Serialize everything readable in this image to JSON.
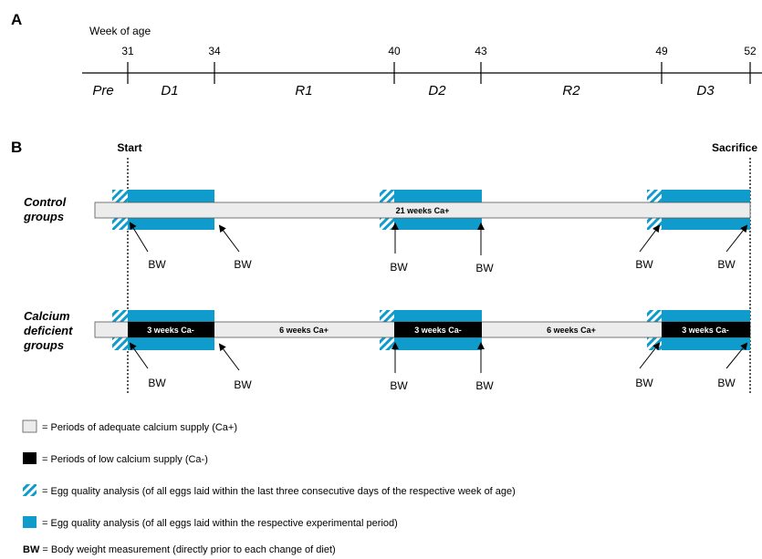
{
  "panel_a": {
    "letter": "A",
    "axis_title": "Week of age",
    "ticks": [
      "31",
      "34",
      "40",
      "43",
      "49",
      "52"
    ],
    "periods": [
      "Pre",
      "D1",
      "R1",
      "D2",
      "R2",
      "D3"
    ]
  },
  "panel_b": {
    "letter": "B",
    "start_label": "Start",
    "end_label": "Sacrifice",
    "control": {
      "label_line1": "Control",
      "label_line2": "groups",
      "bar_label": "21 weeks Ca+"
    },
    "calcium": {
      "label_line1": "Calcium",
      "label_line2": "deficient",
      "label_line3": "groups",
      "segments": [
        "3 weeks Ca-",
        "6 weeks Ca+",
        "3 weeks Ca-",
        "6 weeks Ca+",
        "3 weeks Ca-"
      ]
    },
    "bw_label": "BW"
  },
  "legend": {
    "items": [
      {
        "text": "= Periods of adequate calcium supply (Ca+)"
      },
      {
        "text": "= Periods of low calcium supply (Ca-)"
      },
      {
        "text": "= Egg quality analysis (of all eggs laid within the last three consecutive days of the respective week of age)"
      },
      {
        "text": "= Egg quality analysis (of all eggs laid within the respective experimental period)"
      }
    ],
    "bw_key": "BW",
    "bw_text": " = Body weight measurement (directly prior to each change of diet)"
  },
  "colors": {
    "blue": "#0f9ccc",
    "light_gray": "#ececec",
    "black": "#000000"
  }
}
